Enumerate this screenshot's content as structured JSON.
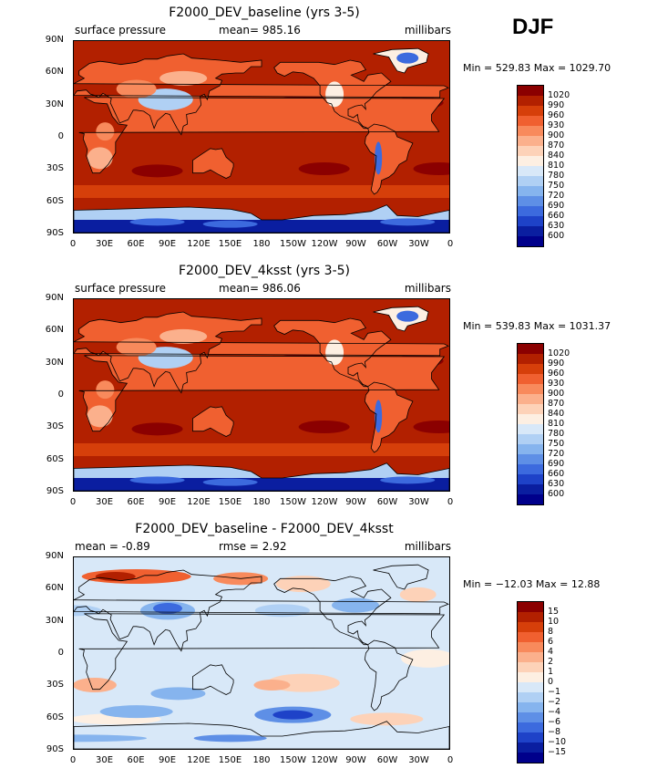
{
  "season_label": "DJF",
  "panels": [
    {
      "title": "F2000_DEV_baseline (yrs 3-5)",
      "left_label": "surface pressure",
      "mid_label": "mean= 985.16",
      "mid_label2": "",
      "units": "millibars",
      "minmax": "Min = 529.83 Max = 1029.70",
      "levels": [
        "1020",
        "990",
        "960",
        "930",
        "900",
        "870",
        "840",
        "810",
        "780",
        "750",
        "720",
        "690",
        "660",
        "630",
        "600"
      ],
      "colors": [
        "#8b0000",
        "#b22000",
        "#d63f0a",
        "#f06030",
        "#f88a5c",
        "#fbb08c",
        "#fdd2b8",
        "#fdefe2",
        "#d8e8f8",
        "#b0d0f4",
        "#86b4ee",
        "#5e8fe6",
        "#3c6ade",
        "#1e42c8",
        "#0a1ea0",
        "#00008b"
      ],
      "field": "abs"
    },
    {
      "title": "F2000_DEV_4ksst (yrs 3-5)",
      "left_label": "surface pressure",
      "mid_label": "mean= 986.06",
      "mid_label2": "",
      "units": "millibars",
      "minmax": "Min = 539.83 Max = 1031.37",
      "levels": [
        "1020",
        "990",
        "960",
        "930",
        "900",
        "870",
        "840",
        "810",
        "780",
        "750",
        "720",
        "690",
        "660",
        "630",
        "600"
      ],
      "colors": [
        "#8b0000",
        "#b22000",
        "#d63f0a",
        "#f06030",
        "#f88a5c",
        "#fbb08c",
        "#fdd2b8",
        "#fdefe2",
        "#d8e8f8",
        "#b0d0f4",
        "#86b4ee",
        "#5e8fe6",
        "#3c6ade",
        "#1e42c8",
        "#0a1ea0",
        "#00008b"
      ],
      "field": "abs"
    },
    {
      "title": "F2000_DEV_baseline - F2000_DEV_4ksst",
      "left_label": "mean =   -0.89",
      "mid_label": "rmse =    2.92",
      "mid_label2": "",
      "units": "millibars",
      "minmax": "Min = −12.03 Max =  12.88",
      "levels": [
        "15",
        "10",
        "8",
        "6",
        "4",
        "2",
        "1",
        "0",
        "−1",
        "−2",
        "−4",
        "−6",
        "−8",
        "−10",
        "−15"
      ],
      "colors": [
        "#8b0000",
        "#b22000",
        "#d63f0a",
        "#f06030",
        "#f88a5c",
        "#fbb08c",
        "#fdd2b8",
        "#fdefe2",
        "#d8e8f8",
        "#b0d0f4",
        "#86b4ee",
        "#5e8fe6",
        "#3c6ade",
        "#1e42c8",
        "#0a1ea0",
        "#00008b"
      ],
      "field": "diff"
    }
  ],
  "lat_labels": [
    "90N",
    "60N",
    "30N",
    "0",
    "30S",
    "60S",
    "90S"
  ],
  "lon_labels": [
    "0",
    "30E",
    "60E",
    "90E",
    "120E",
    "150E",
    "180",
    "150W",
    "120W",
    "90W",
    "60W",
    "30W",
    "0"
  ]
}
